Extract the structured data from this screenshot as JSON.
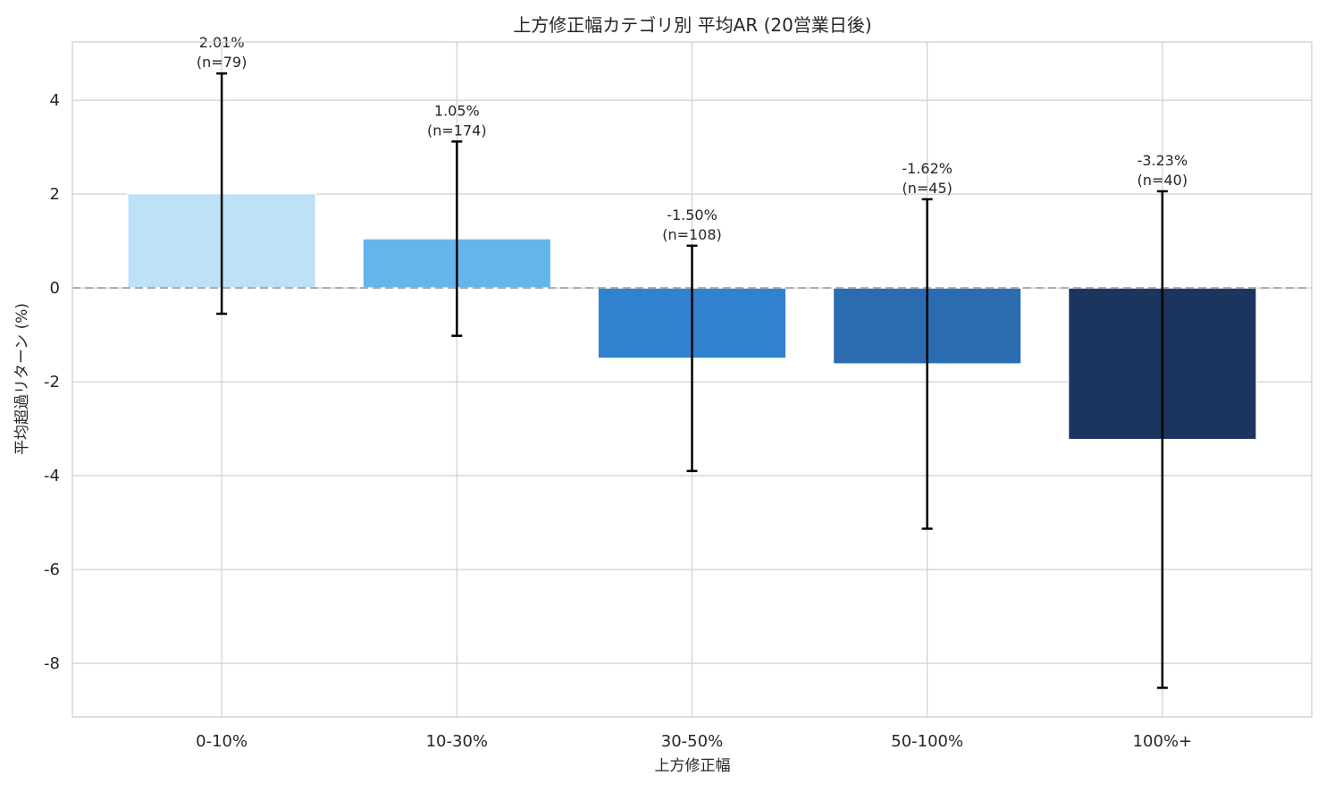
{
  "chart_data": {
    "type": "bar",
    "title": "上方修正幅カテゴリ別 平均AR (20営業日後)",
    "xlabel": "上方修正幅",
    "ylabel": "平均超過リターン (%)",
    "categories": [
      "0-10%",
      "10-30%",
      "30-50%",
      "50-100%",
      "100%+"
    ],
    "values": [
      2.01,
      1.05,
      -1.5,
      -1.62,
      -3.23
    ],
    "errors": [
      2.56,
      2.07,
      2.4,
      3.51,
      5.29
    ],
    "counts": [
      79,
      174,
      108,
      45,
      40
    ],
    "data_labels": [
      [
        "2.01%",
        "(n=79)"
      ],
      [
        "1.05%",
        "(n=174)"
      ],
      [
        "-1.50%",
        "(n=108)"
      ],
      [
        "-1.62%",
        "(n=45)"
      ],
      [
        "-3.23%",
        "(n=40)"
      ]
    ],
    "colors": [
      "#BDE1F7",
      "#64B5EC",
      "#3082D0",
      "#2B6CB0",
      "#1C355E"
    ],
    "ylim": [
      -9.14,
      5.24
    ],
    "yticks": [
      -8,
      -6,
      -4,
      -2,
      0,
      2,
      4
    ],
    "ytick_labels": [
      "-8",
      "-6",
      "-4",
      "-2",
      "0",
      "2",
      "4"
    ],
    "grid": true,
    "zero_line": "dashed gray"
  }
}
